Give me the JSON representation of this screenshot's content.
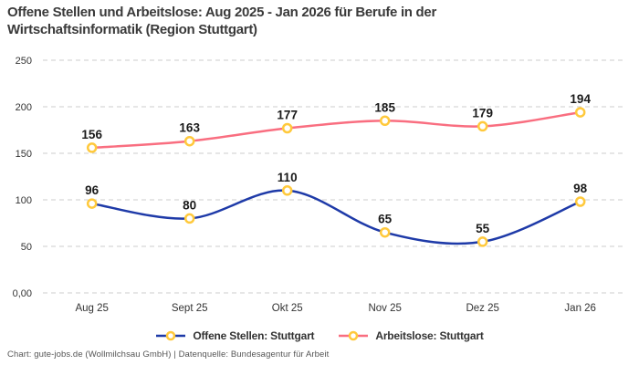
{
  "title": {
    "line1": "Offene Stellen und Arbeitslose: Aug 2025 - Jan 2026 für Berufe in der",
    "line2": "Wirtschaftsinformatik (Region Stuttgart)",
    "full": "Offene Stellen und Arbeitslose: Aug 2025 - Jan 2026 für Berufe in der Wirtschaftsinformatik (Region Stuttgart)"
  },
  "footer": "Chart: gute-jobs.de (Wollmilchsau GmbH) | Datenquelle: Bundesagentur für Arbeit",
  "colors": {
    "offene_stellen_line": "#1E3AA8",
    "arbeitslose_line": "#F96E80",
    "marker_ring": "#FFC93C",
    "marker_fill": "#FFFFFF",
    "gridline": "#CCCCCC",
    "title_text": "#3A3A3A",
    "tick_text": "#333333",
    "data_label_text": "#1A1A1A",
    "footer_text": "#555555"
  },
  "chart_data": {
    "type": "line",
    "title": "Offene Stellen und Arbeitslose: Aug 2025 - Jan 2026 für Berufe in der Wirtschaftsinformatik (Region Stuttgart)",
    "categories": [
      "Aug 25",
      "Sept 25",
      "Okt 25",
      "Nov 25",
      "Dez 25",
      "Jan 26"
    ],
    "series": [
      {
        "name": "Offene Stellen: Stuttgart",
        "values": [
          96,
          80,
          110,
          65,
          55,
          98
        ],
        "color_key": "offene_stellen_line"
      },
      {
        "name": "Arbeitslose: Stuttgart",
        "values": [
          156,
          163,
          177,
          185,
          179,
          194
        ],
        "color_key": "arbeitslose_line"
      }
    ],
    "xlabel": "",
    "ylabel": "",
    "ylim": [
      0,
      250
    ],
    "ytick_labels": [
      "0,00",
      "50",
      "100",
      "150",
      "200",
      "250"
    ],
    "ytick_values": [
      0,
      50,
      100,
      150,
      200,
      250
    ],
    "grid": "horizontal-dashed",
    "line_style": "smooth",
    "data_labels": "above-points",
    "legend_position": "bottom"
  }
}
